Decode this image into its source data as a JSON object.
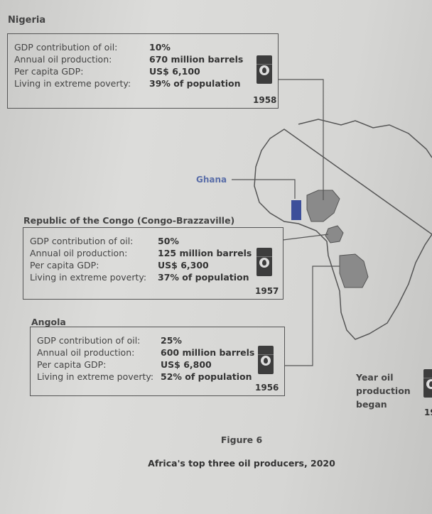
{
  "labels": [
    "GDP contribution of oil:",
    "Annual oil production:",
    "Per capita GDP:",
    "Living in extreme poverty:"
  ],
  "countries": [
    {
      "name": "Nigeria",
      "values": [
        "10%",
        "670 million barrels",
        "US$ 6,100",
        "39% of population"
      ],
      "year": "1958"
    },
    {
      "name": "Republic of the Congo (Congo-Brazzaville)",
      "values": [
        "50%",
        "125 million barrels",
        "US$ 6,300",
        "37% of population"
      ],
      "year": "1957"
    },
    {
      "name": "Angola",
      "values": [
        "25%",
        "600 million barrels",
        "US$ 6,800",
        "52% of population"
      ],
      "year": "1956"
    }
  ],
  "map": {
    "ghana_label": "Ghana",
    "ghana_color": "#3d4f9a",
    "producer_color": "#8a8a8a"
  },
  "legend": {
    "text": "Year oil production began",
    "year_partial": "19"
  },
  "figure": {
    "number": "Figure 6",
    "caption": "Africa's top three oil producers, 2020"
  },
  "icons": [
    "oil-barrel-icon"
  ]
}
